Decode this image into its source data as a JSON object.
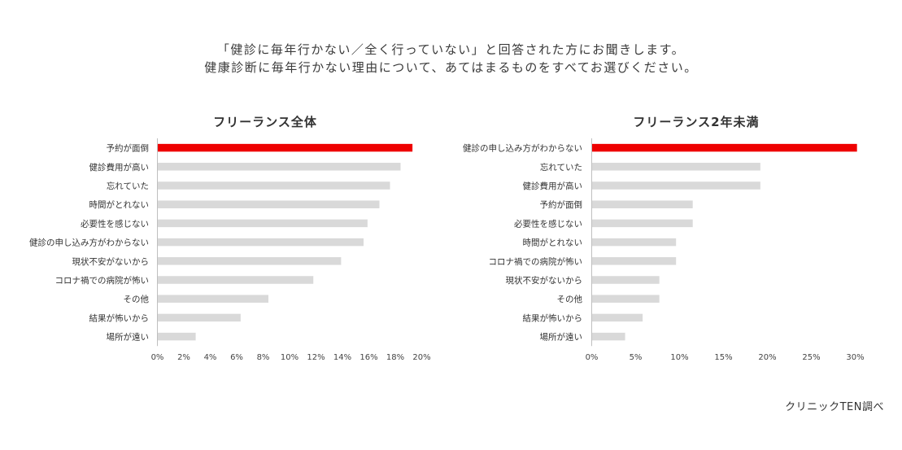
{
  "header": {
    "line1": "「健診に毎年行かない／全く行っていない」と回答された方にお聞きします。",
    "line2": "健康診断に毎年行かない理由について、あてはまるものをすべてお選びください。"
  },
  "source": "クリニックTEN調べ",
  "colors": {
    "highlight": "#ee0000",
    "bar": "#d9d9d9",
    "axis": "#bfbfbf"
  },
  "chart_data": [
    {
      "type": "bar",
      "orientation": "horizontal",
      "title": "フリーランス全体",
      "categories": [
        "予約が面倒",
        "健診費用が高い",
        "忘れていた",
        "時間がとれない",
        "必要性を感じない",
        "健診の申し込み方がわからない",
        "現状不安がないから",
        "コロナ禍での病院が怖い",
        "その他",
        "結果が怖いから",
        "場所が遠い"
      ],
      "values": [
        19.3,
        18.4,
        17.6,
        16.8,
        15.9,
        15.6,
        13.9,
        11.8,
        8.4,
        6.3,
        2.9
      ],
      "xlim": [
        0,
        20
      ],
      "ticks": [
        0,
        2,
        4,
        6,
        8,
        10,
        12,
        14,
        16,
        18,
        20
      ],
      "tick_labels": [
        "0%",
        "2%",
        "4%",
        "6%",
        "8%",
        "10%",
        "12%",
        "14%",
        "16%",
        "18%",
        "20%"
      ],
      "highlight_index": 0,
      "grid": false
    },
    {
      "type": "bar",
      "orientation": "horizontal",
      "title": "フリーランス2年未満",
      "categories": [
        "健診の申し込み方がわからない",
        "忘れていた",
        "健診費用が高い",
        "予約が面倒",
        "必要性を感じない",
        "時間がとれない",
        "コロナ禍での病院が怖い",
        "現状不安がないから",
        "その他",
        "結果が怖いから",
        "場所が遠い"
      ],
      "values": [
        30.2,
        19.2,
        19.2,
        11.5,
        11.5,
        9.6,
        9.6,
        7.7,
        7.7,
        5.8,
        3.8
      ],
      "xlim": [
        0,
        30
      ],
      "ticks": [
        0,
        5,
        10,
        15,
        20,
        25,
        30
      ],
      "tick_labels": [
        "0%",
        "5%",
        "10%",
        "15%",
        "20%",
        "25%",
        "30%"
      ],
      "highlight_index": 0,
      "grid": false
    }
  ]
}
